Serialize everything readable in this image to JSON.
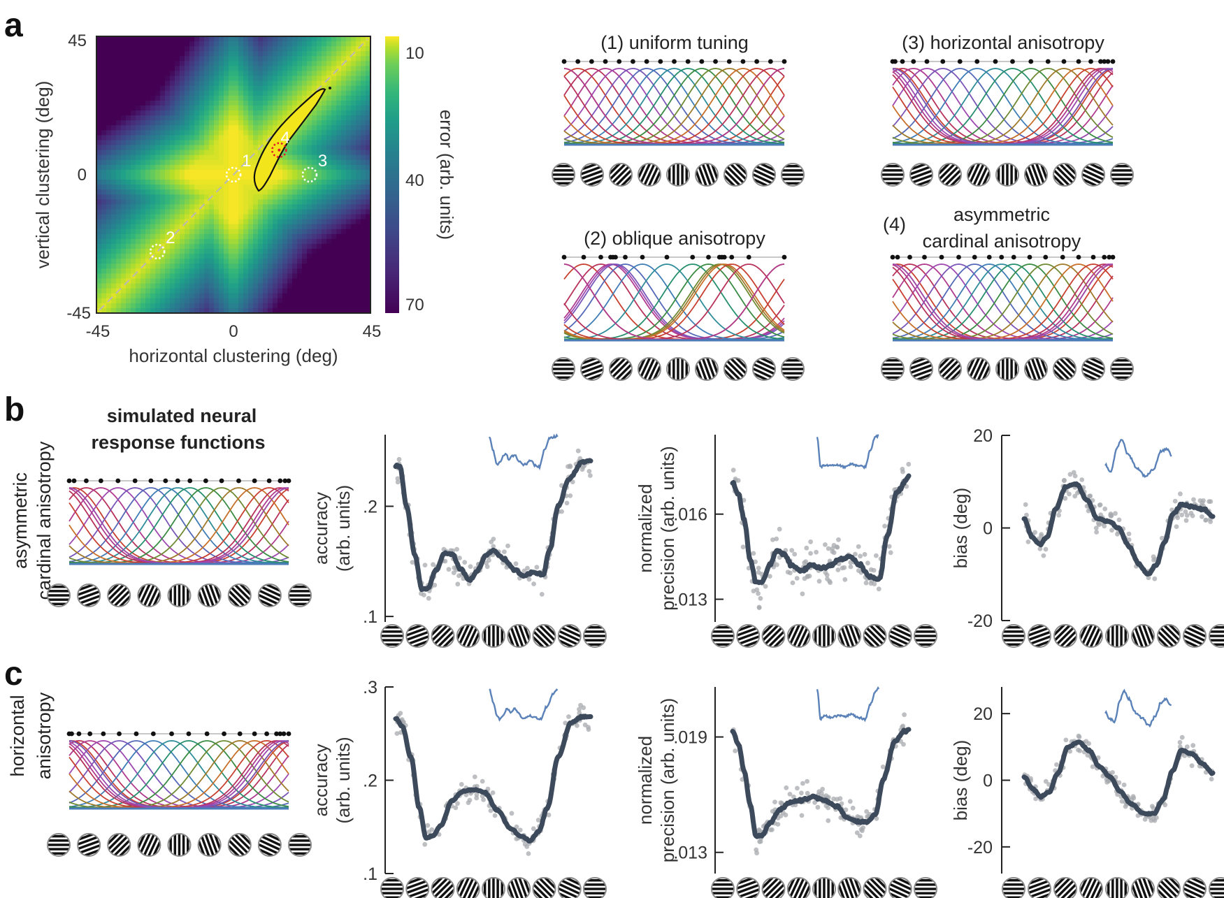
{
  "panel_labels": {
    "a": "a",
    "b": "b",
    "c": "c"
  },
  "colors": {
    "heatmap_colormap": "viridis",
    "smoothed_line": "#3d4a5c",
    "scatter_points": "#a7a9ae",
    "inset_line": "#5b82b8",
    "contour": "#111111",
    "red_marker": "#e0202a",
    "white_marker": "#ffffff",
    "diagonal_dashes": "#b0b0b0"
  },
  "orientation_icons": [
    0,
    20,
    45,
    65,
    90,
    110,
    135,
    155,
    180
  ],
  "chart_data": [
    {
      "id": "error-heatmap",
      "type": "heatmap",
      "title": "",
      "xlabel": "horizontal clustering (deg)",
      "ylabel": "vertical clustering (deg)",
      "xlim": [
        -45,
        45
      ],
      "ylim": [
        -45,
        45
      ],
      "xticks": [
        "-45",
        "0",
        "45"
      ],
      "yticks": [
        "45",
        "0",
        "-45"
      ],
      "colorbar": {
        "label": "error (arb. units)",
        "ticks": [
          "10",
          "40",
          "70"
        ],
        "range": [
          10,
          70
        ],
        "reversed": true
      },
      "description": "low error along the positive diagonal and a diamond-shaped low-error region around the origin; high error in corners",
      "markers": [
        {
          "label": "1",
          "x": 0,
          "y": 0,
          "style": "white-dotted-circle"
        },
        {
          "label": "2",
          "x": -25,
          "y": -25,
          "style": "white-dotted-circle"
        },
        {
          "label": "3",
          "x": 25,
          "y": 0,
          "style": "white-dotted-circle"
        },
        {
          "label": "4",
          "x": 15,
          "y": 8,
          "style": "red-dotted-circle"
        }
      ],
      "contour_region": "elongated best-fit region from about (7,-5) to (34,30) along the diagonal",
      "diagonal_line": {
        "from": [
          -45,
          -45
        ],
        "to": [
          45,
          45
        ],
        "style": "dashed"
      }
    },
    {
      "id": "tuning-uniform",
      "type": "line",
      "title": "(1) uniform tuning",
      "preferred_orientations": [
        0,
        11.25,
        22.5,
        33.75,
        45,
        56.25,
        67.5,
        78.75,
        90,
        101.25,
        112.5,
        123.75,
        135,
        146.25,
        157.5,
        168.75,
        180
      ],
      "xlim": [
        0,
        180
      ]
    },
    {
      "id": "tuning-oblique",
      "type": "line",
      "title": "(2) oblique anisotropy",
      "preferred_orientations": [
        0,
        16,
        30,
        38,
        40,
        42,
        50,
        64,
        84,
        105,
        118,
        127,
        129,
        131,
        137,
        151,
        180
      ],
      "xlim": [
        0,
        180
      ]
    },
    {
      "id": "tuning-horizontal",
      "type": "line",
      "title": "(3) horizontal anisotropy",
      "preferred_orientations": [
        0,
        2,
        8,
        17,
        28,
        41,
        55,
        69,
        84,
        98,
        113,
        127,
        140,
        152,
        162,
        170,
        173,
        176,
        180
      ],
      "xlim": [
        0,
        180
      ]
    },
    {
      "id": "tuning-asymmetric",
      "type": "line",
      "title_prefix": "(4)",
      "title": "asymmetric cardinal anisotropy",
      "title_line1": "asymmetric",
      "title_line2": "cardinal anisotropy",
      "preferred_orientations": [
        0,
        4,
        14,
        26,
        40,
        54,
        67,
        79,
        89,
        99,
        112,
        125,
        139,
        152,
        164,
        173,
        177,
        180
      ],
      "xlim": [
        0,
        180
      ]
    },
    {
      "id": "b-accuracy",
      "type": "scatter",
      "row": "b",
      "ylabel_line1": "accuracy",
      "ylabel_line2": "(arb. units)",
      "ylim": [
        0.095,
        0.265
      ],
      "yticks": [
        {
          "v": 0.1,
          "label": ".1"
        },
        {
          "v": 0.2,
          "label": ".2"
        }
      ],
      "xlim": [
        0,
        180
      ],
      "smoothed_knots": [
        [
          0,
          0.237
        ],
        [
          4,
          0.236
        ],
        [
          10,
          0.2
        ],
        [
          18,
          0.155
        ],
        [
          24,
          0.125
        ],
        [
          30,
          0.126
        ],
        [
          37,
          0.142
        ],
        [
          45,
          0.157
        ],
        [
          52,
          0.157
        ],
        [
          60,
          0.143
        ],
        [
          68,
          0.133
        ],
        [
          76,
          0.142
        ],
        [
          83,
          0.155
        ],
        [
          90,
          0.16
        ],
        [
          100,
          0.152
        ],
        [
          110,
          0.142
        ],
        [
          118,
          0.137
        ],
        [
          128,
          0.14
        ],
        [
          136,
          0.138
        ],
        [
          142,
          0.16
        ],
        [
          150,
          0.2
        ],
        [
          160,
          0.225
        ],
        [
          172,
          0.24
        ],
        [
          180,
          0.242
        ]
      ],
      "inset_knots": [
        [
          0,
          1
        ],
        [
          10,
          0.6
        ],
        [
          20,
          0.2
        ],
        [
          30,
          0.3
        ],
        [
          38,
          0.45
        ],
        [
          45,
          0.5
        ],
        [
          52,
          0.35
        ],
        [
          60,
          0.45
        ],
        [
          68,
          0.5
        ],
        [
          78,
          0.3
        ],
        [
          90,
          0.2
        ],
        [
          100,
          0.25
        ],
        [
          110,
          0.35
        ],
        [
          120,
          0.2
        ],
        [
          132,
          0.15
        ],
        [
          145,
          0.6
        ],
        [
          160,
          0.95
        ],
        [
          180,
          1
        ]
      ],
      "scatter_spread": 0.022
    },
    {
      "id": "b-precision",
      "type": "scatter",
      "row": "b",
      "ylabel_line1": "normalized",
      "ylabel_line2": "precision (arb. units)",
      "ylim": [
        0.0122,
        0.0188
      ],
      "yticks": [
        {
          "v": 0.013,
          "label": ".013"
        },
        {
          "v": 0.016,
          "label": ".016"
        }
      ],
      "xlim": [
        0,
        180
      ],
      "smoothed_knots": [
        [
          0,
          0.0171
        ],
        [
          6,
          0.0167
        ],
        [
          12,
          0.0158
        ],
        [
          18,
          0.0144
        ],
        [
          24,
          0.0136
        ],
        [
          30,
          0.0136
        ],
        [
          38,
          0.0142
        ],
        [
          45,
          0.0147
        ],
        [
          52,
          0.0146
        ],
        [
          60,
          0.0142
        ],
        [
          70,
          0.014
        ],
        [
          80,
          0.0142
        ],
        [
          90,
          0.0141
        ],
        [
          100,
          0.0142
        ],
        [
          110,
          0.0144
        ],
        [
          120,
          0.0145
        ],
        [
          130,
          0.0142
        ],
        [
          140,
          0.0138
        ],
        [
          150,
          0.0137
        ],
        [
          158,
          0.0152
        ],
        [
          168,
          0.0168
        ],
        [
          180,
          0.0173
        ]
      ],
      "inset_knots": [
        [
          0,
          1
        ],
        [
          10,
          0.15
        ],
        [
          20,
          0.2
        ],
        [
          40,
          0.18
        ],
        [
          60,
          0.2
        ],
        [
          80,
          0.15
        ],
        [
          100,
          0.22
        ],
        [
          120,
          0.18
        ],
        [
          140,
          0.15
        ],
        [
          155,
          0.6
        ],
        [
          170,
          1
        ],
        [
          180,
          1
        ]
      ],
      "scatter_spread": 0.0011
    },
    {
      "id": "b-bias",
      "type": "scatter",
      "row": "b",
      "ylabel": "bias (deg)",
      "ylim": [
        -20,
        20
      ],
      "yticks": [
        {
          "v": -20,
          "label": "-20"
        },
        {
          "v": 0,
          "label": "0"
        },
        {
          "v": 20,
          "label": "20"
        }
      ],
      "xlim": [
        0,
        180
      ],
      "smoothed_knots": [
        [
          0,
          2
        ],
        [
          8,
          -2
        ],
        [
          15,
          -3.5
        ],
        [
          22,
          -2
        ],
        [
          30,
          4
        ],
        [
          40,
          9
        ],
        [
          50,
          9.5
        ],
        [
          60,
          6
        ],
        [
          70,
          2
        ],
        [
          80,
          1.5
        ],
        [
          90,
          0
        ],
        [
          100,
          -4
        ],
        [
          110,
          -8
        ],
        [
          118,
          -10
        ],
        [
          126,
          -8
        ],
        [
          134,
          -3
        ],
        [
          142,
          3
        ],
        [
          150,
          5
        ],
        [
          162,
          4.5
        ],
        [
          172,
          4
        ],
        [
          180,
          2.5
        ]
      ],
      "inset_knots": [
        [
          0,
          0.35
        ],
        [
          8,
          0.15
        ],
        [
          18,
          0.8
        ],
        [
          25,
          1
        ],
        [
          35,
          0.6
        ],
        [
          48,
          0.25
        ],
        [
          60,
          0.05
        ],
        [
          72,
          0.2
        ],
        [
          85,
          0.7
        ],
        [
          95,
          0.75
        ],
        [
          100,
          0.55
        ]
      ],
      "scatter_spread": 4.5
    },
    {
      "id": "c-accuracy",
      "type": "scatter",
      "row": "c",
      "ylabel_line1": "accuracy",
      "ylabel_line2": "(arb. units)",
      "ylim": [
        0.1,
        0.3
      ],
      "yticks": [
        {
          "v": 0.1,
          "label": ".1"
        },
        {
          "v": 0.2,
          "label": ".2"
        },
        {
          "v": 0.3,
          "label": ".3"
        }
      ],
      "xlim": [
        0,
        180
      ],
      "smoothed_knots": [
        [
          0,
          0.266
        ],
        [
          6,
          0.258
        ],
        [
          14,
          0.225
        ],
        [
          22,
          0.17
        ],
        [
          28,
          0.138
        ],
        [
          34,
          0.14
        ],
        [
          42,
          0.152
        ],
        [
          52,
          0.178
        ],
        [
          62,
          0.188
        ],
        [
          72,
          0.19
        ],
        [
          82,
          0.187
        ],
        [
          94,
          0.168
        ],
        [
          106,
          0.148
        ],
        [
          116,
          0.14
        ],
        [
          124,
          0.135
        ],
        [
          132,
          0.145
        ],
        [
          140,
          0.17
        ],
        [
          150,
          0.225
        ],
        [
          162,
          0.262
        ],
        [
          172,
          0.268
        ],
        [
          180,
          0.268
        ]
      ],
      "inset_knots": [
        [
          0,
          1
        ],
        [
          10,
          0.6
        ],
        [
          18,
          0.25
        ],
        [
          25,
          0.15
        ],
        [
          35,
          0.3
        ],
        [
          42,
          0.45
        ],
        [
          50,
          0.35
        ],
        [
          60,
          0.45
        ],
        [
          68,
          0.35
        ],
        [
          76,
          0.2
        ],
        [
          86,
          0.2
        ],
        [
          96,
          0.25
        ],
        [
          105,
          0.2
        ],
        [
          120,
          0.15
        ],
        [
          135,
          0.5
        ],
        [
          150,
          0.85
        ],
        [
          160,
          0.95
        ]
      ],
      "scatter_spread": 0.017
    },
    {
      "id": "c-precision",
      "type": "scatter",
      "row": "c",
      "ylabel_line1": "normalized",
      "ylabel_line2": "precision (arb. units)",
      "ylim": [
        0.0119,
        0.0216
      ],
      "yticks": [
        {
          "v": 0.013,
          "label": ".013"
        },
        {
          "v": 0.019,
          "label": ".019"
        }
      ],
      "xlim": [
        0,
        180
      ],
      "smoothed_knots": [
        [
          0,
          0.0193
        ],
        [
          6,
          0.0186
        ],
        [
          12,
          0.0172
        ],
        [
          18,
          0.0155
        ],
        [
          24,
          0.0138
        ],
        [
          30,
          0.0139
        ],
        [
          38,
          0.0145
        ],
        [
          48,
          0.0152
        ],
        [
          58,
          0.0156
        ],
        [
          70,
          0.0157
        ],
        [
          82,
          0.0159
        ],
        [
          94,
          0.0157
        ],
        [
          106,
          0.0154
        ],
        [
          118,
          0.0148
        ],
        [
          128,
          0.0146
        ],
        [
          138,
          0.0146
        ],
        [
          146,
          0.015
        ],
        [
          154,
          0.0168
        ],
        [
          166,
          0.0188
        ],
        [
          176,
          0.0193
        ],
        [
          180,
          0.0194
        ]
      ],
      "inset_knots": [
        [
          0,
          1
        ],
        [
          10,
          0.15
        ],
        [
          20,
          0.25
        ],
        [
          40,
          0.2
        ],
        [
          60,
          0.25
        ],
        [
          80,
          0.22
        ],
        [
          100,
          0.28
        ],
        [
          120,
          0.2
        ],
        [
          140,
          0.15
        ],
        [
          155,
          0.55
        ],
        [
          170,
          0.9
        ],
        [
          180,
          1
        ]
      ],
      "scatter_spread": 0.0012
    },
    {
      "id": "c-bias",
      "type": "scatter",
      "row": "c",
      "ylabel": "bias (deg)",
      "ylim": [
        -28,
        28
      ],
      "yticks": [
        {
          "v": -20,
          "label": "-20"
        },
        {
          "v": 0,
          "label": "0"
        },
        {
          "v": 20,
          "label": "20"
        }
      ],
      "xlim": [
        0,
        180
      ],
      "smoothed_knots": [
        [
          0,
          1
        ],
        [
          8,
          -2.5
        ],
        [
          16,
          -5
        ],
        [
          24,
          -3.5
        ],
        [
          32,
          2
        ],
        [
          42,
          10
        ],
        [
          52,
          11.5
        ],
        [
          62,
          9
        ],
        [
          72,
          4
        ],
        [
          82,
          1
        ],
        [
          92,
          -3.5
        ],
        [
          102,
          -7
        ],
        [
          114,
          -10
        ],
        [
          124,
          -10
        ],
        [
          132,
          -6
        ],
        [
          142,
          3
        ],
        [
          150,
          9
        ],
        [
          160,
          8
        ],
        [
          170,
          5
        ],
        [
          180,
          2
        ]
      ],
      "inset_knots": [
        [
          0,
          0.45
        ],
        [
          6,
          0.3
        ],
        [
          14,
          0.2
        ],
        [
          22,
          0.75
        ],
        [
          28,
          1
        ],
        [
          36,
          0.8
        ],
        [
          45,
          0.45
        ],
        [
          56,
          0.3
        ],
        [
          66,
          0.1
        ],
        [
          76,
          0.35
        ],
        [
          84,
          0.7
        ],
        [
          92,
          0.8
        ],
        [
          100,
          0.6
        ]
      ],
      "scatter_spread": 4.5
    }
  ],
  "row_b": {
    "section_title_line1": "simulated neural",
    "section_title_line2": "response functions",
    "row_label_line1": "asymmetric",
    "row_label_line2": "cardinal anisotropy"
  },
  "row_c": {
    "row_label_line1": "horizontal",
    "row_label_line2": "anisotropy"
  }
}
